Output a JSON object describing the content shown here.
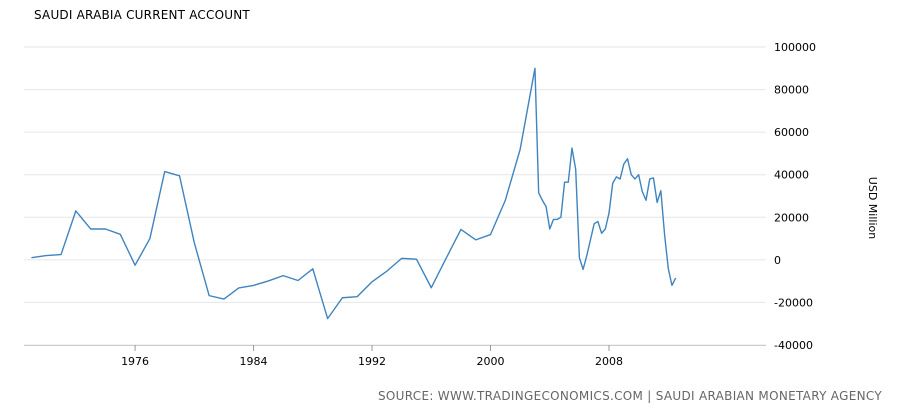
{
  "title": "SAUDI ARABIA CURRENT ACCOUNT",
  "source": "SOURCE:  WWW.TRADINGECONOMICS.COM  |  SAUDI ARABIAN MONETARY AGENCY",
  "chart_data": {
    "type": "line",
    "title": "SAUDI ARABIA CURRENT ACCOUNT",
    "xlabel": "",
    "ylabel": "USD Million",
    "xlim": [
      1968.5,
      2018.6
    ],
    "ylim": [
      -40000,
      100000
    ],
    "x_ticks": [
      1976,
      1984,
      1992,
      2000,
      2008
    ],
    "y_ticks": [
      -40000,
      -20000,
      0,
      20000,
      40000,
      60000,
      80000,
      100000
    ],
    "grid": "horizontal",
    "line_color": "#3f84bf",
    "series": [
      {
        "values": [
          [
            1969,
            1000
          ],
          [
            1970,
            2000
          ],
          [
            1971,
            2500
          ],
          [
            1972,
            23000
          ],
          [
            1973,
            14500
          ],
          [
            1974,
            14500
          ],
          [
            1975,
            12000
          ],
          [
            1976,
            -2500
          ],
          [
            1977,
            10000
          ],
          [
            1978,
            41500
          ],
          [
            1979,
            39500
          ],
          [
            1980,
            8000
          ],
          [
            1981,
            -16800
          ],
          [
            1982,
            -18400
          ],
          [
            1983,
            -13200
          ],
          [
            1984,
            -12000
          ],
          [
            1985,
            -9900
          ],
          [
            1986,
            -7400
          ],
          [
            1987,
            -9700
          ],
          [
            1988,
            -4200
          ],
          [
            1989,
            -27600
          ],
          [
            1990,
            -17800
          ],
          [
            1991,
            -17300
          ],
          [
            1992,
            -10300
          ],
          [
            1993,
            -5300
          ],
          [
            1994,
            700
          ],
          [
            1995,
            300
          ],
          [
            1996,
            -13100
          ],
          [
            1997,
            700
          ],
          [
            1998,
            14300
          ],
          [
            1999,
            9400
          ],
          [
            2000,
            11900
          ],
          [
            2001,
            28000
          ],
          [
            2002,
            51900
          ],
          [
            2003,
            90000
          ],
          [
            2003.25,
            31500
          ],
          [
            2003.5,
            28000
          ],
          [
            2003.75,
            25000
          ],
          [
            2004,
            14500
          ],
          [
            2004.25,
            19000
          ],
          [
            2004.5,
            19000
          ],
          [
            2004.75,
            20000
          ],
          [
            2005,
            36500
          ],
          [
            2005.25,
            36500
          ],
          [
            2005.5,
            52500
          ],
          [
            2005.75,
            42500
          ],
          [
            2006,
            1000
          ],
          [
            2006.25,
            -4500
          ],
          [
            2006.5,
            2000
          ],
          [
            2006.75,
            9500
          ],
          [
            2007,
            17000
          ],
          [
            2007.25,
            18000
          ],
          [
            2007.5,
            12500
          ],
          [
            2007.75,
            14500
          ],
          [
            2008,
            22000
          ],
          [
            2008.25,
            36000
          ],
          [
            2008.5,
            39000
          ],
          [
            2008.75,
            38000
          ],
          [
            2009,
            45000
          ],
          [
            2009.25,
            47500
          ],
          [
            2009.5,
            40000
          ],
          [
            2009.75,
            38000
          ],
          [
            2010,
            40000
          ],
          [
            2010.25,
            32000
          ],
          [
            2010.5,
            28000
          ],
          [
            2010.75,
            38000
          ],
          [
            2011,
            38500
          ],
          [
            2011.25,
            27000
          ],
          [
            2011.5,
            32500
          ],
          [
            2011.75,
            12000
          ],
          [
            2012,
            -4000
          ],
          [
            2012.25,
            -12000
          ],
          [
            2012.5,
            -8500
          ]
        ]
      }
    ]
  }
}
